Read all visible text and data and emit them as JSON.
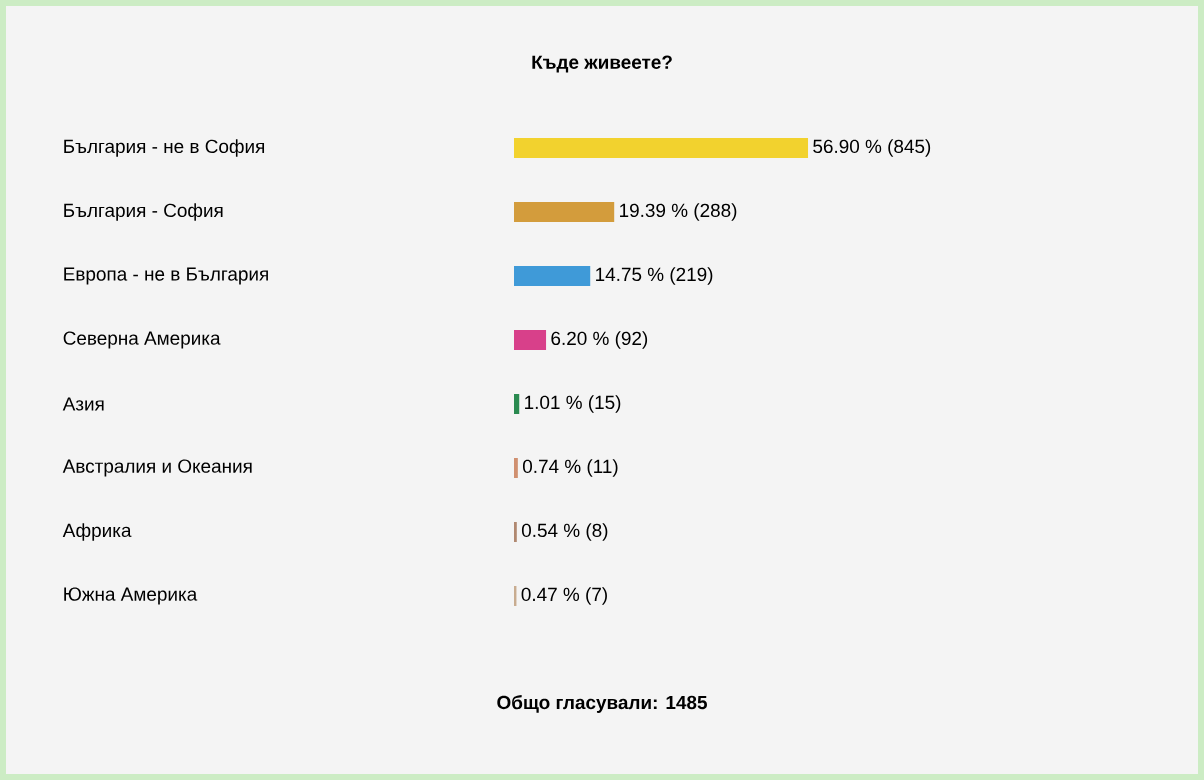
{
  "chart_data": {
    "type": "bar",
    "orientation": "horizontal",
    "title": "Къде живеете?",
    "categories": [
      "България - не в София",
      "България - София",
      "Европа - не в България",
      "Северна Америка",
      "Азия",
      "Австралия и Океания",
      "Африка",
      "Южна Америка"
    ],
    "values": [
      56.9,
      19.39,
      14.75,
      6.2,
      1.01,
      0.74,
      0.54,
      0.47
    ],
    "value_labels": [
      "56.90 % (845)",
      "19.39 % (288)",
      "14.75 % (219)",
      "6.20 % (92)",
      "1.01 % (15)",
      "0.74 % (11)",
      "0.54 % (8)",
      "0.47 % (7)"
    ],
    "colors": [
      "#f2d22e",
      "#d39c3c",
      "#3f9ad8",
      "#d8408a",
      "#2a8a50",
      "#d09070",
      "#b08870",
      "#c8ac90"
    ],
    "tick_labels": "y",
    "annotations": [
      "Общо гласували: 1485"
    ]
  }
}
